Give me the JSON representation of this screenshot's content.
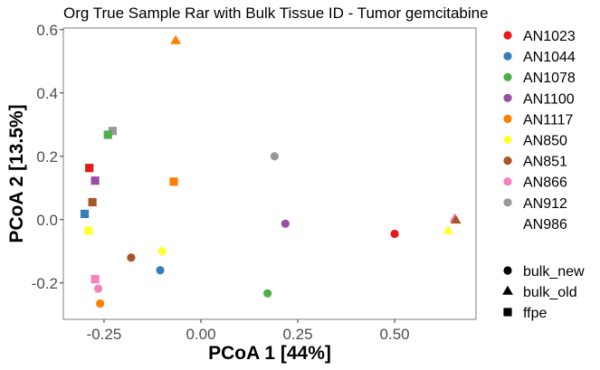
{
  "chart_data": {
    "type": "scatter",
    "title": "Org True Sample Rar with Bulk Tissue ID - Tumor gemcitabine",
    "xlabel": "PCoA 1 [44%]",
    "ylabel": "PCoA 2 [13.5%]",
    "xlim": [
      -0.355,
      0.71
    ],
    "ylim": [
      -0.315,
      0.605
    ],
    "x_ticks": [
      -0.25,
      0.0,
      0.25,
      0.5
    ],
    "x_tick_labels": [
      "-0.25",
      "0.00",
      "0.25",
      "0.50"
    ],
    "y_ticks": [
      -0.2,
      0.0,
      0.2,
      0.4,
      0.6
    ],
    "y_tick_labels": [
      "-0.2",
      "0.0",
      "0.2",
      "0.4",
      "0.6"
    ],
    "grid": false,
    "legend_position": "right",
    "color_legend": [
      {
        "name": "AN1023",
        "color": "#E41A1C"
      },
      {
        "name": "AN1044",
        "color": "#377EB8"
      },
      {
        "name": "AN1078",
        "color": "#4DAF4A"
      },
      {
        "name": "AN1100",
        "color": "#984EA3"
      },
      {
        "name": "AN1117",
        "color": "#FF7F00"
      },
      {
        "name": "AN850",
        "color": "#FFFF33"
      },
      {
        "name": "AN851",
        "color": "#A65628"
      },
      {
        "name": "AN866",
        "color": "#F781BF"
      },
      {
        "name": "AN912",
        "color": "#999999"
      },
      {
        "name": "AN986",
        "color": "#FFFFFF"
      }
    ],
    "shape_legend": [
      {
        "name": "bulk_new",
        "shape": "circle"
      },
      {
        "name": "bulk_old",
        "shape": "triangle"
      },
      {
        "name": "ffpe",
        "shape": "square"
      }
    ],
    "points": [
      {
        "sample": "AN1117",
        "type": "bulk_old",
        "x": -0.065,
        "y": 0.565
      },
      {
        "sample": "AN912",
        "type": "ffpe",
        "x": -0.228,
        "y": 0.28
      },
      {
        "sample": "AN1078",
        "type": "ffpe",
        "x": -0.24,
        "y": 0.268
      },
      {
        "sample": "AN912",
        "type": "bulk_new",
        "x": 0.19,
        "y": 0.2
      },
      {
        "sample": "AN1023",
        "type": "ffpe",
        "x": -0.288,
        "y": 0.163
      },
      {
        "sample": "AN1100",
        "type": "ffpe",
        "x": -0.273,
        "y": 0.123
      },
      {
        "sample": "AN1117",
        "type": "ffpe",
        "x": -0.07,
        "y": 0.12
      },
      {
        "sample": "AN851",
        "type": "ffpe",
        "x": -0.28,
        "y": 0.055
      },
      {
        "sample": "AN1044",
        "type": "ffpe",
        "x": -0.3,
        "y": 0.018
      },
      {
        "sample": "AN866",
        "type": "bulk_old",
        "x": 0.655,
        "y": 0.003
      },
      {
        "sample": "AN851",
        "type": "bulk_old",
        "x": 0.658,
        "y": -0.002
      },
      {
        "sample": "AN1100",
        "type": "bulk_new",
        "x": 0.218,
        "y": -0.013
      },
      {
        "sample": "AN850",
        "type": "bulk_old",
        "x": 0.638,
        "y": -0.035
      },
      {
        "sample": "AN850",
        "type": "ffpe",
        "x": -0.29,
        "y": -0.035
      },
      {
        "sample": "AN1023",
        "type": "bulk_new",
        "x": 0.5,
        "y": -0.045
      },
      {
        "sample": "AN850",
        "type": "bulk_new",
        "x": -0.1,
        "y": -0.1
      },
      {
        "sample": "AN851",
        "type": "bulk_new",
        "x": -0.18,
        "y": -0.12
      },
      {
        "sample": "AN1044",
        "type": "bulk_new",
        "x": -0.105,
        "y": -0.16
      },
      {
        "sample": "AN866",
        "type": "ffpe",
        "x": -0.273,
        "y": -0.188
      },
      {
        "sample": "AN866",
        "type": "bulk_new",
        "x": -0.265,
        "y": -0.218
      },
      {
        "sample": "AN1078",
        "type": "bulk_new",
        "x": 0.172,
        "y": -0.233
      },
      {
        "sample": "AN1117",
        "type": "bulk_new",
        "x": -0.26,
        "y": -0.265
      }
    ]
  }
}
